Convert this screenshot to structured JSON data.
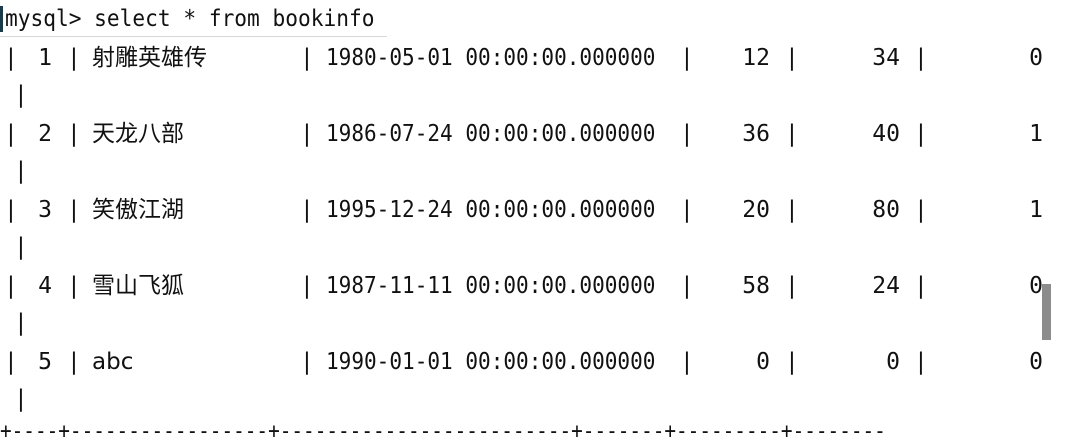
{
  "terminal": {
    "prompt": "mysql> select * from bookinfo",
    "column_separator": "|",
    "wrap_marker": "|",
    "bottom_border": "+----+-----------------+-------------------------+-------+---------+--------",
    "rows": [
      {
        "id": "1",
        "title": "射雕英雄传",
        "date": "1980-05-01 00:00:00.000000",
        "col4": "12",
        "col5": "34",
        "col6": "0"
      },
      {
        "id": "2",
        "title": "天龙八部",
        "date": "1986-07-24 00:00:00.000000",
        "col4": "36",
        "col5": "40",
        "col6": "1"
      },
      {
        "id": "3",
        "title": "笑傲江湖",
        "date": "1995-12-24 00:00:00.000000",
        "col4": "20",
        "col5": "80",
        "col6": "1"
      },
      {
        "id": "4",
        "title": "雪山飞狐",
        "date": "1987-11-11 00:00:00.000000",
        "col4": "58",
        "col5": "24",
        "col6": "0"
      },
      {
        "id": "5",
        "title": "abc",
        "date": "1990-01-01 00:00:00.000000",
        "col4": "0",
        "col5": "0",
        "col6": "0"
      }
    ]
  },
  "colors": {
    "background": "#ffffff",
    "text": "#111111",
    "cursor": "#1a3b47",
    "scrollbar": "#8c8c8c"
  }
}
